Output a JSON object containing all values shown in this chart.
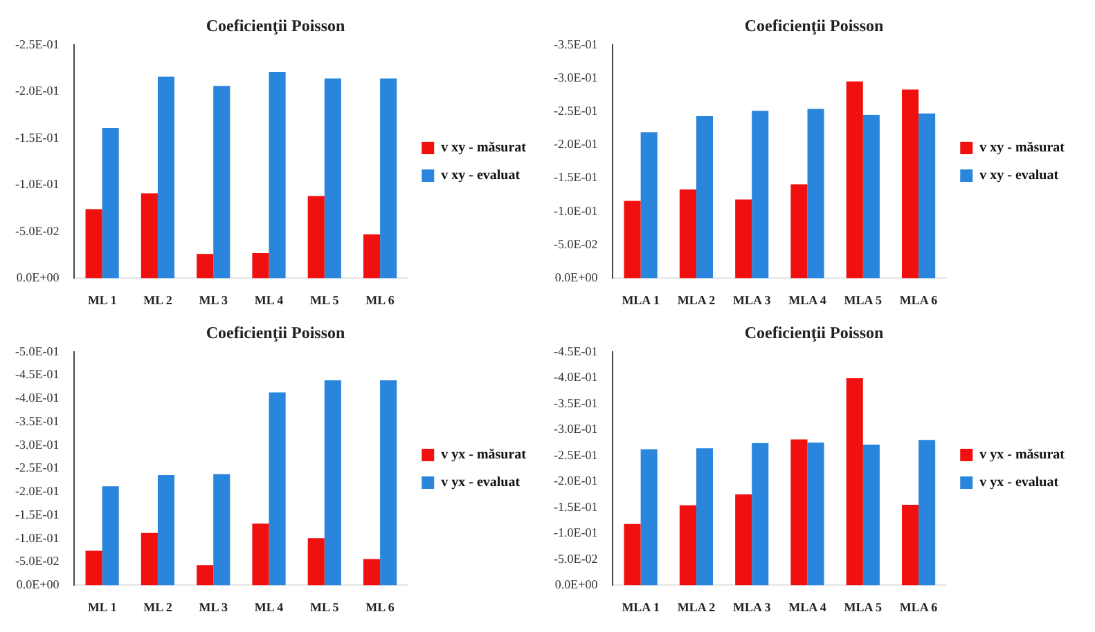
{
  "chart_data": [
    {
      "type": "bar",
      "title": "Coeficienţii Poisson",
      "categories": [
        "ML 1",
        "ML 2",
        "ML 3",
        "ML 4",
        "ML 5",
        "ML 6"
      ],
      "ylim": [
        0,
        -0.25
      ],
      "yticks": [
        {
          "value": 0,
          "label": "0.0E+00"
        },
        {
          "value": -0.05,
          "label": "-5.0E-02"
        },
        {
          "value": -0.1,
          "label": "-1.0E-01"
        },
        {
          "value": -0.15,
          "label": "-1.5E-01"
        },
        {
          "value": -0.2,
          "label": "-2.0E-01"
        },
        {
          "value": -0.25,
          "label": "-2.5E-01"
        }
      ],
      "grid": false,
      "legend": "right",
      "series": [
        {
          "name": "v xy - măsurat",
          "color": "#f01010",
          "values": [
            -0.074,
            -0.091,
            -0.026,
            -0.027,
            -0.088,
            -0.047
          ]
        },
        {
          "name": "v xy - evaluat",
          "color": "#2a86dc",
          "values": [
            -0.161,
            -0.216,
            -0.206,
            -0.221,
            -0.214,
            -0.214
          ]
        }
      ]
    },
    {
      "type": "bar",
      "title": "Coeficienţii Poisson",
      "categories": [
        "MLA 1",
        "MLA 2",
        "MLA 3",
        "MLA 4",
        "MLA 5",
        "MLA 6"
      ],
      "ylim": [
        0,
        -0.35
      ],
      "yticks": [
        {
          "value": 0,
          "label": "0.0E+00"
        },
        {
          "value": -0.05,
          "label": "-5.0E-02"
        },
        {
          "value": -0.1,
          "label": "-1.0E-01"
        },
        {
          "value": -0.15,
          "label": "-1.5E-01"
        },
        {
          "value": -0.2,
          "label": "-2.0E-01"
        },
        {
          "value": -0.25,
          "label": "-2.5E-01"
        },
        {
          "value": -0.3,
          "label": "-3.0E-01"
        },
        {
          "value": -0.35,
          "label": "-3.5E-01"
        }
      ],
      "grid": false,
      "legend": "right",
      "series": [
        {
          "name": "v xy - măsurat",
          "color": "#f01010",
          "values": [
            -0.116,
            -0.133,
            -0.118,
            -0.141,
            -0.295,
            -0.283
          ]
        },
        {
          "name": "v xy - evaluat",
          "color": "#2a86dc",
          "values": [
            -0.219,
            -0.243,
            -0.251,
            -0.254,
            -0.245,
            -0.247
          ]
        }
      ]
    },
    {
      "type": "bar",
      "title": "Coeficienţii Poisson",
      "categories": [
        "ML 1",
        "ML 2",
        "ML 3",
        "ML 4",
        "ML 5",
        "ML 6"
      ],
      "ylim": [
        0,
        -0.5
      ],
      "yticks": [
        {
          "value": 0,
          "label": "0.0E+00"
        },
        {
          "value": -0.05,
          "label": "-5.0E-02"
        },
        {
          "value": -0.1,
          "label": "-1.0E-01"
        },
        {
          "value": -0.15,
          "label": "-1.5E-01"
        },
        {
          "value": -0.2,
          "label": "-2.0E-01"
        },
        {
          "value": -0.25,
          "label": "-2.5E-01"
        },
        {
          "value": -0.3,
          "label": "-3.0E-01"
        },
        {
          "value": -0.35,
          "label": "-3.5E-01"
        },
        {
          "value": -0.4,
          "label": "-4.0E-01"
        },
        {
          "value": -0.45,
          "label": "-4.5E-01"
        },
        {
          "value": -0.5,
          "label": "-5.0E-01"
        }
      ],
      "grid": false,
      "legend": "right",
      "series": [
        {
          "name": "v yx - măsurat",
          "color": "#f01010",
          "values": [
            -0.074,
            -0.112,
            -0.043,
            -0.132,
            -0.101,
            -0.056
          ]
        },
        {
          "name": "v yx - evaluat",
          "color": "#2a86dc",
          "values": [
            -0.212,
            -0.236,
            -0.238,
            -0.413,
            -0.439,
            -0.439
          ]
        }
      ]
    },
    {
      "type": "bar",
      "title": "Coeficienţii Poisson",
      "categories": [
        "MLA 1",
        "MLA 2",
        "MLA 3",
        "MLA 4",
        "MLA 5",
        "MLA 6"
      ],
      "ylim": [
        0,
        -0.45
      ],
      "yticks": [
        {
          "value": 0,
          "label": "0.0E+00"
        },
        {
          "value": -0.05,
          "label": "-5.0E-02"
        },
        {
          "value": -0.1,
          "label": "-1.0E-01"
        },
        {
          "value": -0.15,
          "label": "-1.5E-01"
        },
        {
          "value": -0.2,
          "label": "-2.0E-01"
        },
        {
          "value": -0.25,
          "label": "-2.5E-01"
        },
        {
          "value": -0.3,
          "label": "-3.0E-01"
        },
        {
          "value": -0.35,
          "label": "-3.5E-01"
        },
        {
          "value": -0.4,
          "label": "-4.0E-01"
        },
        {
          "value": -0.45,
          "label": "-4.5E-01"
        }
      ],
      "grid": false,
      "legend": "right",
      "series": [
        {
          "name": "v yx - măsurat",
          "color": "#f01010",
          "values": [
            -0.118,
            -0.154,
            -0.175,
            -0.281,
            -0.399,
            -0.155
          ]
        },
        {
          "name": "v yx - evaluat",
          "color": "#2a86dc",
          "values": [
            -0.262,
            -0.264,
            -0.274,
            -0.275,
            -0.271,
            -0.28
          ]
        }
      ]
    }
  ]
}
